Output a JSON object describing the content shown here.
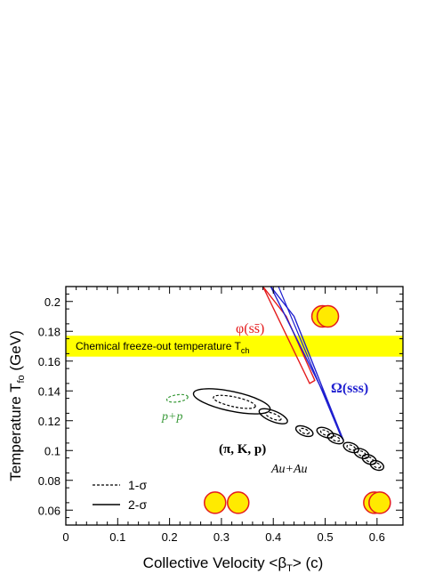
{
  "chart_data": {
    "type": "scatter",
    "xlabel": "Collective Velocity <β",
    "xlabel_sub": "T",
    "xlabel_tail": "> (c)",
    "ylabel": "Temperature T",
    "ylabel_sub": "fo",
    "ylabel_tail": " (GeV)",
    "xlim": [
      0,
      0.65
    ],
    "ylim": [
      0.05,
      0.21
    ],
    "xticks": [
      "0",
      "0.1",
      "0.2",
      "0.3",
      "0.4",
      "0.5",
      "0.6"
    ],
    "yticks": [
      "0.06",
      "0.08",
      "0.1",
      "0.12",
      "0.14",
      "0.16",
      "0.18",
      "0.2"
    ],
    "band": {
      "label": "Chemical freeze-out temperature T",
      "label_sub": "ch",
      "ymin": 0.163,
      "ymax": 0.177,
      "color": "#ffff00"
    },
    "annotations": {
      "phi": "φ(ss̄)",
      "omega": "Ω(sss)",
      "pp": "p+p",
      "pikp": "(π, K, p)",
      "auau": "Au+Au"
    },
    "legend": {
      "position": "bottom-left",
      "entries": [
        {
          "label": "1-σ",
          "style": "dashed"
        },
        {
          "label": "2-σ",
          "style": "solid"
        }
      ]
    },
    "series": [
      {
        "name": "φ(ss̄) 2-σ contour",
        "color": "#e41a1c",
        "x": [
          0.38,
          0.47,
          0.48,
          0.425,
          0.38
        ],
        "y": [
          0.21,
          0.145,
          0.147,
          0.19,
          0.21
        ]
      },
      {
        "name": "Ω(sss) 2-σ contour",
        "color": "#1f1fd0",
        "x": [
          0.395,
          0.495,
          0.53,
          0.535,
          0.44,
          0.395
        ],
        "y": [
          0.21,
          0.14,
          0.11,
          0.107,
          0.19,
          0.21
        ]
      },
      {
        "name": "Au+Au (π, K, p) contours",
        "color": "#000000",
        "centers_x": [
          0.32,
          0.4,
          0.46,
          0.5,
          0.52,
          0.55,
          0.57,
          0.585,
          0.6
        ],
        "centers_y": [
          0.133,
          0.123,
          0.113,
          0.112,
          0.108,
          0.102,
          0.098,
          0.094,
          0.09
        ]
      },
      {
        "name": "p+p 1-σ contour",
        "color": "#3a9a3a",
        "x": [
          0.215
        ],
        "y": [
          0.135
        ]
      }
    ],
    "markers": [
      {
        "x": 0.5,
        "y": 0.19,
        "count": 2
      },
      {
        "x": 0.31,
        "y": 0.065,
        "count": 2
      },
      {
        "x": 0.6,
        "y": 0.065,
        "count": 2
      }
    ]
  }
}
